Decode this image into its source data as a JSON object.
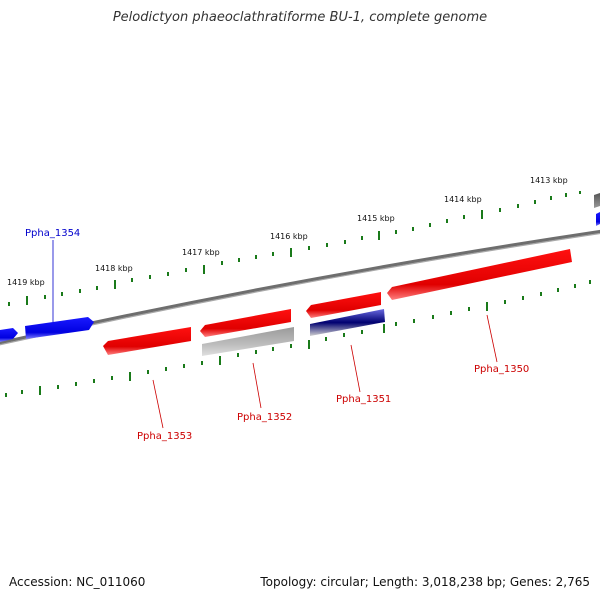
{
  "header": {
    "title": "Pelodictyon phaeoclathratiforme BU-1, complete genome"
  },
  "footer": {
    "accession": "Accession: NC_011060",
    "summary": "Topology: circular; Length: 3,018,238 bp; Genes: 2,765"
  },
  "colors": {
    "backbone": "#808080",
    "forward_gene": "#0000ff",
    "reverse_gene": "#ff0000",
    "gray_gene": "#b0b0b0",
    "dark_blue_gene": "#000080",
    "tick": "#1a7a1a",
    "label_blue": "#0000cc",
    "label_red": "#cc0000"
  },
  "kbp_labels": [
    "1413 kbp",
    "1414 kbp",
    "1415 kbp",
    "1416 kbp",
    "1417 kbp",
    "1418 kbp",
    "1419 kbp"
  ],
  "gene_labels": [
    {
      "name": "Ppha_1354",
      "color": "blue"
    },
    {
      "name": "Ppha_1353",
      "color": "red"
    },
    {
      "name": "Ppha_1352",
      "color": "red"
    },
    {
      "name": "Ppha_1351",
      "color": "red"
    },
    {
      "name": "Ppha_1350",
      "color": "red"
    }
  ]
}
